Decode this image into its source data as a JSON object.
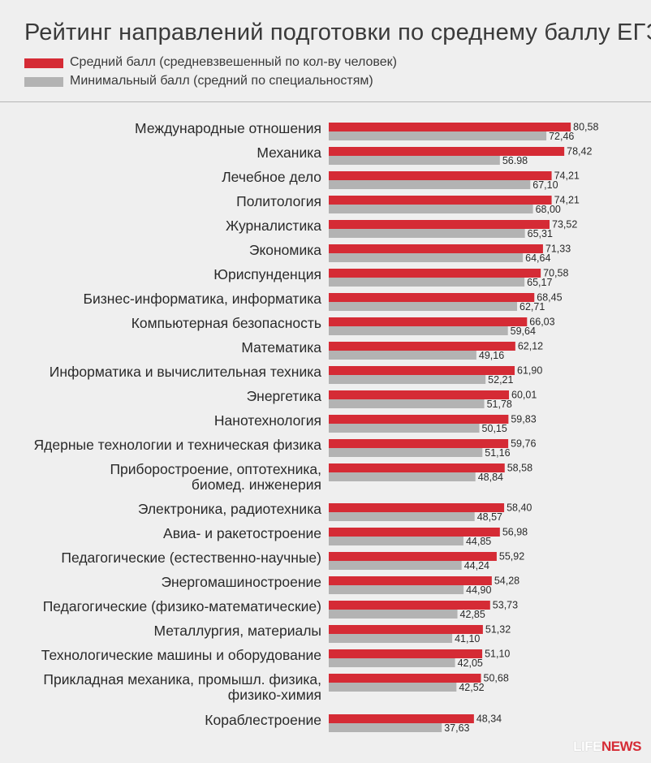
{
  "colors": {
    "primary": "#d52b35",
    "secondary": "#b3b3b3"
  },
  "logo": {
    "part1": "LIFE",
    "part2": "NEWS"
  },
  "chart_data": {
    "type": "bar",
    "orientation": "horizontal",
    "title": "Рейтинг направлений подготовки по среднему баллу ЕГЭ",
    "legend_placement": "top-left",
    "grid": false,
    "xlim": [
      0,
      100
    ],
    "categories": [
      [
        "Международные отношения"
      ],
      [
        "Механика"
      ],
      [
        "Лечебное дело"
      ],
      [
        "Политология"
      ],
      [
        "Журналистика"
      ],
      [
        "Экономика"
      ],
      [
        "Юриспунденция"
      ],
      [
        "Бизнес-информатика, информатика"
      ],
      [
        "Компьютерная безопасность"
      ],
      [
        "Математика"
      ],
      [
        "Информатика и вычислительная техника"
      ],
      [
        "Энергетика"
      ],
      [
        "Нанотехнология"
      ],
      [
        "Ядерные технологии и техническая физика"
      ],
      [
        "Приборостроение, оптотехника,",
        "биомед. инженерия"
      ],
      [
        "Электроника, радиотехника"
      ],
      [
        "Авиа- и ракетостроение"
      ],
      [
        "Педагогические (естественно-научные)"
      ],
      [
        "Энергомашиностроение"
      ],
      [
        "Педагогические (физико-математические)"
      ],
      [
        "Металлургия, материалы"
      ],
      [
        "Технологические машины и оборудование"
      ],
      [
        "Прикладная механика, промышл. физика,",
        "физико-химия"
      ],
      [
        "Кораблестроение"
      ]
    ],
    "series": [
      {
        "name": "Средний балл (средневзвешенный по кол-ву человек)",
        "color": "#d52b35",
        "values": [
          80.58,
          78.42,
          74.21,
          74.21,
          73.52,
          71.33,
          70.58,
          68.45,
          66.03,
          62.12,
          61.9,
          60.01,
          59.83,
          59.76,
          58.58,
          58.4,
          56.98,
          55.92,
          54.28,
          53.73,
          51.32,
          51.1,
          50.68,
          48.34
        ],
        "labels": [
          "80,58",
          "78,42",
          "74,21",
          "74,21",
          "73,52",
          "71,33",
          "70,58",
          "68,45",
          "66,03",
          "62,12",
          "61,90",
          "60,01",
          "59,83",
          "59,76",
          "58,58",
          "58,40",
          "56,98",
          "55,92",
          "54,28",
          "53,73",
          "51,32",
          "51,10",
          "50,68",
          "48,34"
        ]
      },
      {
        "name": "Минимальный балл (средний по специальностям)",
        "color": "#b3b3b3",
        "values": [
          72.46,
          56.98,
          67.1,
          68.0,
          65.31,
          64.64,
          65.17,
          62.71,
          59.64,
          49.16,
          52.21,
          51.78,
          50.15,
          51.16,
          48.84,
          48.57,
          44.85,
          44.24,
          44.9,
          42.85,
          41.1,
          42.05,
          42.52,
          37.63
        ],
        "labels": [
          "72,46",
          "56.98",
          "67,10",
          "68,00",
          "65,31",
          "64,64",
          "65,17",
          "62,71",
          "59,64",
          "49,16",
          "52,21",
          "51,78",
          "50,15",
          "51,16",
          "48,84",
          "48,57",
          "44,85",
          "44,24",
          "44,90",
          "42,85",
          "41,10",
          "42,05",
          "42,52",
          "37,63"
        ]
      }
    ]
  }
}
